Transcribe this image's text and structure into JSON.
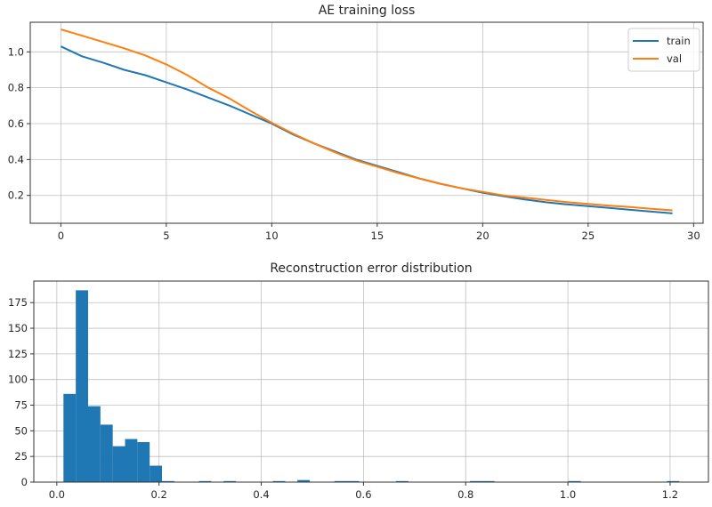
{
  "chart_data": [
    {
      "type": "line",
      "title": "AE training loss",
      "xlabel": "",
      "ylabel": "",
      "xlim": [
        -1.45,
        30.45
      ],
      "ylim": [
        0.045,
        1.165
      ],
      "xticks": [
        0,
        5,
        10,
        15,
        20,
        25,
        30
      ],
      "xtick_labels": [
        "0",
        "5",
        "10",
        "15",
        "20",
        "25",
        "30"
      ],
      "yticks": [
        0.2,
        0.4,
        0.6,
        0.8,
        1.0
      ],
      "ytick_labels": [
        "0.2",
        "0.4",
        "0.6",
        "0.8",
        "1.0"
      ],
      "grid": true,
      "legend_position": "top-right",
      "x": [
        0,
        1,
        2,
        3,
        4,
        5,
        6,
        7,
        8,
        9,
        10,
        11,
        12,
        13,
        14,
        15,
        16,
        17,
        18,
        19,
        20,
        21,
        22,
        23,
        24,
        25,
        26,
        27,
        28,
        29
      ],
      "series": [
        {
          "name": "train",
          "color": "#1f77b4",
          "values": [
            1.03,
            0.975,
            0.94,
            0.9,
            0.87,
            0.83,
            0.79,
            0.745,
            0.7,
            0.65,
            0.6,
            0.54,
            0.49,
            0.445,
            0.4,
            0.365,
            0.33,
            0.295,
            0.265,
            0.24,
            0.215,
            0.195,
            0.178,
            0.162,
            0.15,
            0.14,
            0.13,
            0.12,
            0.11,
            0.1
          ]
        },
        {
          "name": "val",
          "color": "#ff7f0e",
          "values": [
            1.125,
            1.09,
            1.055,
            1.02,
            0.98,
            0.93,
            0.87,
            0.8,
            0.74,
            0.67,
            0.605,
            0.545,
            0.49,
            0.44,
            0.395,
            0.36,
            0.325,
            0.295,
            0.265,
            0.24,
            0.22,
            0.2,
            0.188,
            0.175,
            0.163,
            0.153,
            0.143,
            0.135,
            0.126,
            0.117
          ]
        }
      ]
    },
    {
      "type": "bar",
      "subtype": "histogram",
      "title": "Reconstruction error distribution",
      "xlabel": "",
      "ylabel": "",
      "xlim": [
        -0.045,
        1.275
      ],
      "ylim": [
        0,
        196
      ],
      "xticks": [
        0.0,
        0.2,
        0.4,
        0.6,
        0.8,
        1.0,
        1.2
      ],
      "xtick_labels": [
        "0.0",
        "0.2",
        "0.4",
        "0.6",
        "0.8",
        "1.0",
        "1.2"
      ],
      "yticks": [
        0,
        25,
        50,
        75,
        100,
        125,
        150,
        175
      ],
      "ytick_labels": [
        "0",
        "25",
        "50",
        "75",
        "100",
        "125",
        "150",
        "175"
      ],
      "grid": true,
      "color": "#1f77b4",
      "bin_start": 0.013,
      "bin_width": 0.0241,
      "counts": [
        86,
        187,
        74,
        56,
        35,
        42,
        39,
        16,
        1,
        0,
        0,
        1,
        0,
        1,
        0,
        0,
        0,
        1,
        0,
        2,
        0,
        0,
        1,
        1,
        0,
        0,
        0,
        1,
        0,
        0,
        0,
        0,
        0,
        1,
        1,
        0,
        0,
        0,
        0,
        0,
        0,
        1,
        0,
        0,
        0,
        0,
        0,
        0,
        0,
        1
      ]
    }
  ]
}
